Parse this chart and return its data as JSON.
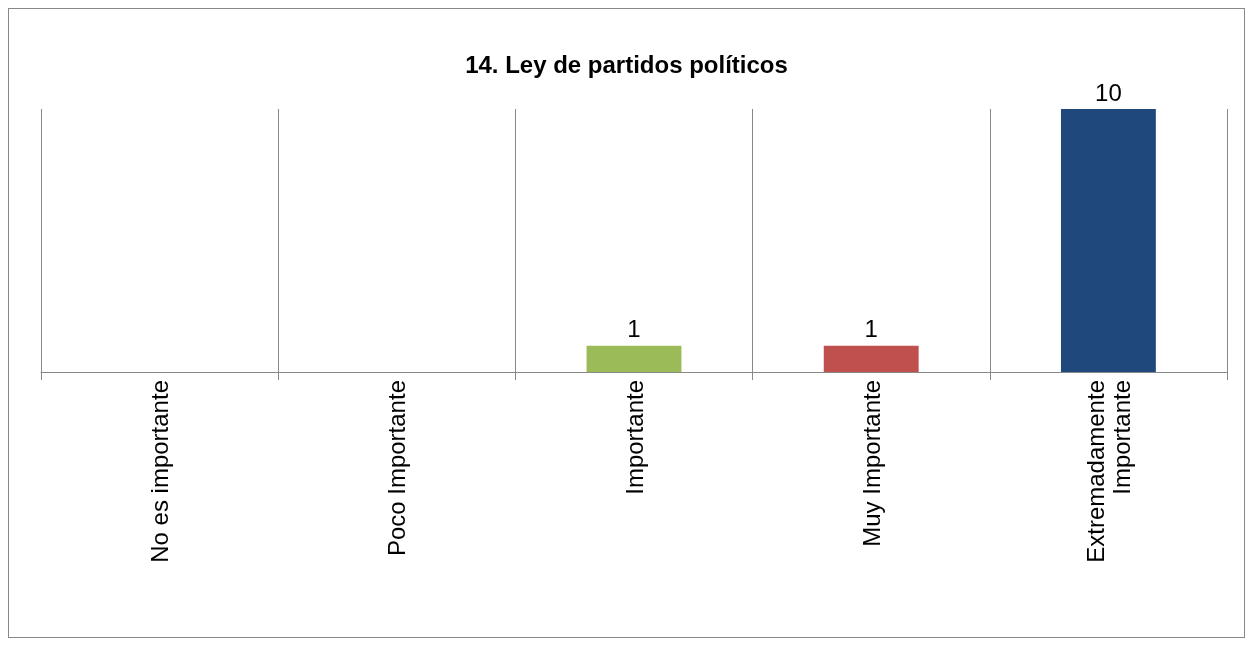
{
  "chart_data": {
    "type": "bar",
    "title": "14. Ley de partidos políticos",
    "categories": [
      "No es importante",
      "Poco Importante",
      "Importante",
      "Muy Importante",
      "Extremadamente Importante"
    ],
    "values": [
      0,
      0,
      1,
      1,
      10
    ],
    "colors": [
      "#4f81bd",
      "#4f81bd",
      "#9bbb59",
      "#c0504d",
      "#1f497d"
    ],
    "value_labels": [
      null,
      null,
      "1",
      "1",
      "10"
    ],
    "grid": "x"
  }
}
